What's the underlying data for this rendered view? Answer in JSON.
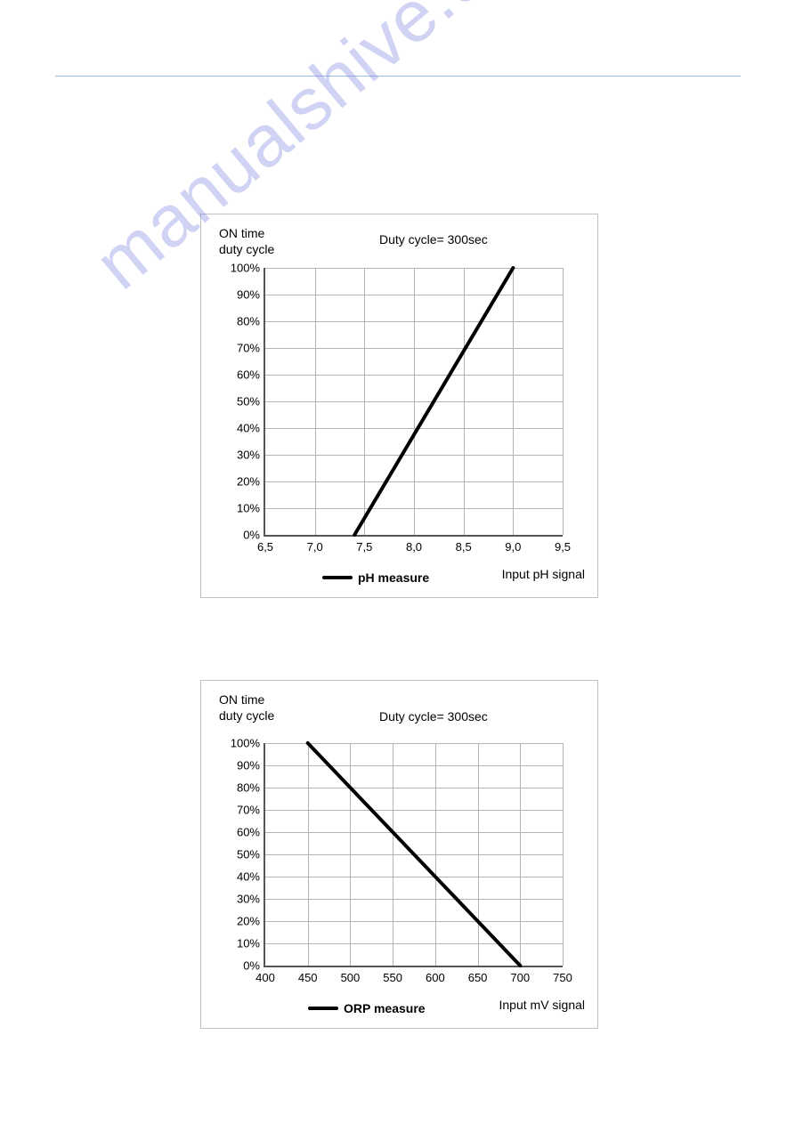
{
  "watermark": "manualshive.com",
  "chart1": {
    "type": "line",
    "y_title_line1": "ON time",
    "y_title_line2": "duty cycle",
    "subtitle": "Duty cycle= 300sec",
    "xlabel": "Input pH signal",
    "legend_label": "pH measure",
    "yticks": [
      "0%",
      "10%",
      "20%",
      "30%",
      "40%",
      "50%",
      "60%",
      "70%",
      "80%",
      "90%",
      "100%"
    ],
    "xticks": [
      "6,5",
      "7,0",
      "7,5",
      "8,0",
      "8,5",
      "9,0",
      "9,5"
    ],
    "xlim": [
      6.5,
      9.5
    ],
    "ylim": [
      0,
      100
    ],
    "line_points": [
      [
        7.4,
        0
      ],
      [
        9.0,
        100
      ]
    ],
    "line_color": "#000000",
    "line_width": 4,
    "grid_color": "#b4b4b4",
    "background": "#ffffff"
  },
  "chart2": {
    "type": "line",
    "y_title_line1": "ON time",
    "y_title_line2": "duty cycle",
    "subtitle": "Duty cycle= 300sec",
    "xlabel": "Input mV signal",
    "legend_label": "ORP measure",
    "yticks": [
      "0%",
      "10%",
      "20%",
      "30%",
      "40%",
      "50%",
      "60%",
      "70%",
      "80%",
      "90%",
      "100%"
    ],
    "xticks": [
      "400",
      "450",
      "500",
      "550",
      "600",
      "650",
      "700",
      "750"
    ],
    "xlim": [
      400,
      750
    ],
    "ylim": [
      0,
      100
    ],
    "line_points": [
      [
        450,
        100
      ],
      [
        700,
        0
      ]
    ],
    "line_color": "#000000",
    "line_width": 4,
    "grid_color": "#b4b4b4",
    "background": "#ffffff"
  }
}
